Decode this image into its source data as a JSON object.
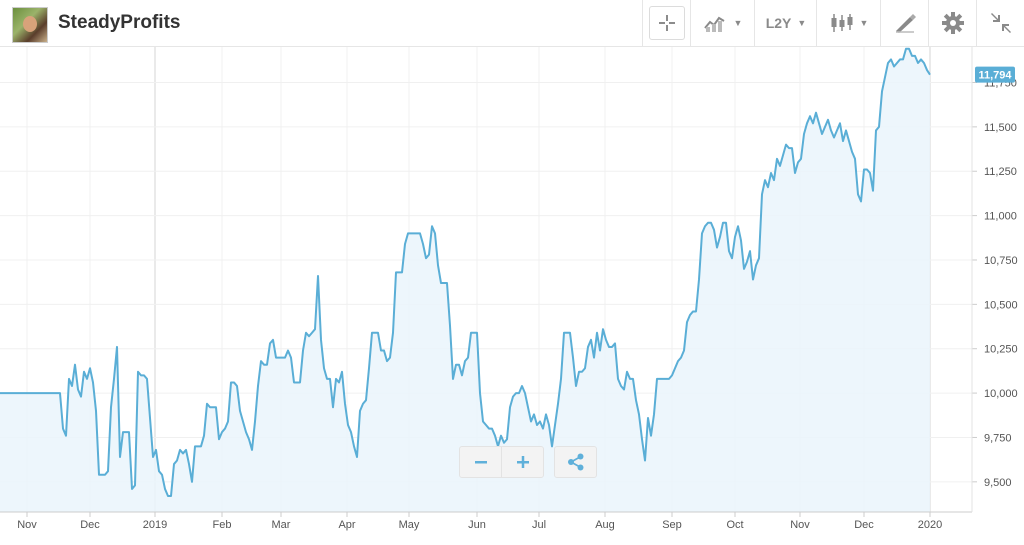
{
  "header": {
    "title": "SteadyProfits",
    "period_label": "L2Y"
  },
  "toolbar_icons": [
    "crosshair-icon",
    "compare-chart-icon",
    "candlestick-icon",
    "draw-icon",
    "gear-icon",
    "collapse-icon"
  ],
  "colors": {
    "line": "#5aaed6",
    "fill": "#eaf4fb",
    "price_tag": "#5aaed6",
    "accent": "#5fb0da"
  },
  "chart_data": {
    "type": "area",
    "x_ticks": [
      "Nov",
      "Dec",
      "2019",
      "Feb",
      "Mar",
      "Apr",
      "May",
      "Jun",
      "Jul",
      "Aug",
      "Sep",
      "Oct",
      "Nov",
      "Dec",
      "2020"
    ],
    "y_ticks": [
      9500,
      9750,
      10000,
      10250,
      10500,
      10750,
      11000,
      11250,
      11500,
      11750
    ],
    "y_tick_labels": [
      "9,500",
      "9,750",
      "10,000",
      "10,250",
      "10,500",
      "10,750",
      "11,000",
      "11,250",
      "11,500",
      "11,750"
    ],
    "ylim": [
      9330,
      11950
    ],
    "last_value": 11794,
    "last_value_label": "11,794",
    "grid": true,
    "series": [
      {
        "values": [
          10000,
          10000,
          10000,
          10000,
          10000,
          10000,
          10000,
          10000,
          10000,
          10000,
          10000,
          10000,
          10000,
          10000,
          10000,
          10000,
          10000,
          10000,
          10000,
          10000,
          10000,
          9800,
          9760,
          10080,
          10040,
          10160,
          10020,
          9980,
          10120,
          10080,
          10140,
          10060,
          9900,
          9540,
          9540,
          9540,
          9560,
          9920,
          10080,
          10260,
          9640,
          9780,
          9780,
          9780,
          9460,
          9480,
          10120,
          10100,
          10100,
          10080,
          9860,
          9640,
          9680,
          9560,
          9540,
          9460,
          9420,
          9420,
          9600,
          9620,
          9680,
          9660,
          9680,
          9600,
          9500,
          9700,
          9700,
          9700,
          9760,
          9940,
          9920,
          9920,
          9920,
          9740,
          9780,
          9800,
          9840,
          10060,
          10060,
          10040,
          9900,
          9840,
          9780,
          9740,
          9680,
          9840,
          10040,
          10180,
          10160,
          10160,
          10280,
          10300,
          10200,
          10200,
          10200,
          10200,
          10240,
          10200,
          10060,
          10060,
          10060,
          10240,
          10340,
          10320,
          10340,
          10360,
          10660,
          10300,
          10140,
          10080,
          10080,
          9920,
          10080,
          10060,
          10120,
          9940,
          9820,
          9780,
          9700,
          9640,
          9900,
          9940,
          9960,
          10140,
          10340,
          10340,
          10340,
          10240,
          10240,
          10180,
          10200,
          10340,
          10680,
          10680,
          10680,
          10840,
          10900,
          10900,
          10900,
          10900,
          10900,
          10840,
          10760,
          10780,
          10940,
          10900,
          10720,
          10620,
          10620,
          10620,
          10380,
          10080,
          10160,
          10160,
          10100,
          10180,
          10200,
          10340,
          10340,
          10340,
          10000,
          9840,
          9820,
          9800,
          9800,
          9760,
          9700,
          9760,
          9720,
          9740,
          9920,
          9980,
          10000,
          10000,
          10040,
          10000,
          9920,
          9840,
          9880,
          9820,
          9840,
          9800,
          9880,
          9820,
          9700,
          9820,
          9940,
          10080,
          10340,
          10340,
          10340,
          10200,
          10040,
          10120,
          10120,
          10140,
          10260,
          10300,
          10200,
          10340,
          10240,
          10360,
          10300,
          10260,
          10260,
          10280,
          10080,
          10040,
          10020,
          10120,
          10080,
          10080,
          9960,
          9880,
          9740,
          9620,
          9860,
          9760,
          9880,
          10080,
          10080,
          10080,
          10080,
          10080,
          10100,
          10140,
          10180,
          10200,
          10240,
          10400,
          10440,
          10460,
          10460,
          10640,
          10900,
          10940,
          10960,
          10960,
          10920,
          10820,
          10880,
          10960,
          10960,
          10800,
          10760,
          10880,
          10940,
          10860,
          10700,
          10740,
          10800,
          10640,
          10720,
          10760,
          11120,
          11200,
          11160,
          11240,
          11200,
          11320,
          11280,
          11340,
          11400,
          11380,
          11380,
          11240,
          11300,
          11320,
          11460,
          11520,
          11560,
          11520,
          11580,
          11520,
          11460,
          11500,
          11540,
          11480,
          11440,
          11480,
          11520,
          11420,
          11480,
          11420,
          11360,
          11320,
          11120,
          11080,
          11260,
          11260,
          11240,
          11140,
          11480,
          11500,
          11700,
          11780,
          11860,
          11880,
          11840,
          11860,
          11880,
          11880,
          11940,
          11940,
          11900,
          11900,
          11860,
          11880,
          11860,
          11820,
          11794
        ]
      }
    ]
  }
}
